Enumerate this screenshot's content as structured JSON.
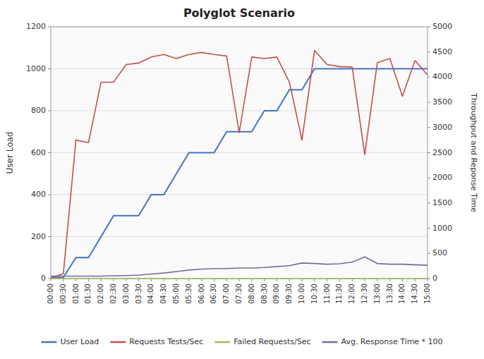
{
  "chart_data": {
    "type": "line",
    "title": "Polyglot Scenario",
    "y_label": "User Load",
    "y2_label": "Throughput and Reponse Time",
    "categories": [
      "00:00",
      "00:30",
      "01:00",
      "01:30",
      "02:00",
      "02:30",
      "03:00",
      "03:30",
      "04:00",
      "04:30",
      "05:00",
      "05:30",
      "06:00",
      "06:30",
      "07:00",
      "07:30",
      "08:00",
      "08:30",
      "09:00",
      "09:30",
      "10:00",
      "10:30",
      "11:00",
      "11:30",
      "12:00",
      "12:30",
      "13:00",
      "13:30",
      "14:00",
      "14:30",
      "15:00"
    ],
    "series": [
      {
        "name": "User Load",
        "color": "#4472C4",
        "values": [
          5,
          5,
          100,
          100,
          200,
          300,
          300,
          300,
          400,
          400,
          500,
          600,
          600,
          600,
          700,
          700,
          700,
          800,
          800,
          900,
          900,
          1000,
          1000,
          1000,
          1000,
          1000,
          1000,
          1000,
          1000,
          1000,
          1000
        ]
      },
      {
        "name": "Requests Tests/Sec",
        "color": "#C0504D",
        "axis": "y2",
        "values": [
          5,
          100,
          2750,
          2700,
          3900,
          3900,
          4250,
          4280,
          4400,
          4450,
          4370,
          4450,
          4490,
          4450,
          4420,
          2900,
          4400,
          4370,
          4400,
          3900,
          2750,
          4530,
          4250,
          4210,
          4200,
          2460,
          4290,
          4370,
          3620,
          4330,
          4040
        ]
      },
      {
        "name": "Failed Requests/Sec",
        "color": "#9BBB59",
        "axis": "y2",
        "values": [
          0,
          0,
          0,
          0,
          0,
          0,
          0,
          0,
          0,
          0,
          0,
          0,
          0,
          0,
          0,
          0,
          0,
          0,
          0,
          0,
          0,
          0,
          0,
          0,
          0,
          0,
          0,
          0,
          0,
          0,
          0
        ]
      },
      {
        "name": "Avg. Response Time * 100",
        "color": "#7B68A0",
        "axis": "y2",
        "values": [
          50,
          50,
          50,
          50,
          50,
          55,
          60,
          70,
          90,
          110,
          140,
          170,
          190,
          200,
          200,
          210,
          210,
          220,
          240,
          255,
          310,
          300,
          285,
          295,
          330,
          430,
          300,
          285,
          285,
          275,
          265
        ]
      }
    ],
    "ylim": [
      0,
      1200
    ],
    "yticks": [
      0,
      200,
      400,
      600,
      800,
      1000,
      1200
    ],
    "y2lim": [
      0,
      5000
    ],
    "y2ticks": [
      0,
      500,
      1000,
      1500,
      2000,
      2500,
      3000,
      3500,
      4000,
      4500,
      5000
    ],
    "grid": true,
    "legend": "bottom"
  }
}
